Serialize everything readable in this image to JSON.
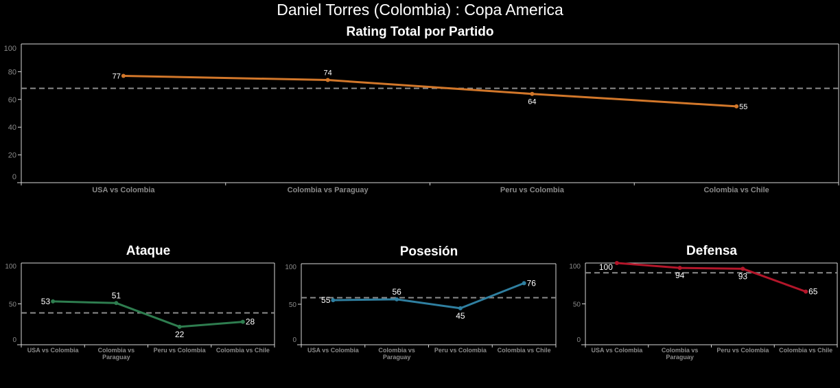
{
  "header": {
    "title": "Daniel Torres (Colombia) :  Copa  America",
    "main_chart_title": "Rating Total por Partido"
  },
  "chart_data": [
    {
      "type": "line",
      "title": "Rating Total por Partido",
      "categories": [
        "USA vs Colombia",
        "Colombia vs Paraguay",
        "Peru vs Colombia",
        "Colombia vs Chile"
      ],
      "values": [
        77,
        74,
        64,
        55
      ],
      "average_reference_line": 68,
      "yticks": [
        0,
        20,
        40,
        60,
        80,
        100
      ],
      "ylim": [
        0,
        100
      ],
      "color": "#d2772a",
      "xlabel": "",
      "ylabel": "",
      "grid": false
    },
    {
      "type": "line",
      "title": "Ataque",
      "categories": [
        "USA vs Colombia",
        "Colombia vs Paraguay",
        "Peru vs Colombia",
        "Colombia vs Chile"
      ],
      "values": [
        53,
        51,
        22,
        28
      ],
      "average_reference_line": 39,
      "yticks": [
        0,
        50,
        100
      ],
      "ylim": [
        0,
        100
      ],
      "color": "#2e7d4f",
      "grid": false
    },
    {
      "type": "line",
      "title": "Posesión",
      "categories": [
        "USA vs Colombia",
        "Colombia vs Paraguay",
        "Peru vs Colombia",
        "Colombia vs Chile"
      ],
      "values": [
        55,
        56,
        45,
        76
      ],
      "average_reference_line": 58,
      "yticks": [
        0,
        50,
        100
      ],
      "ylim": [
        0,
        100
      ],
      "color": "#2f7fa0",
      "grid": false
    },
    {
      "type": "line",
      "title": "Defensa",
      "categories": [
        "USA vs Colombia",
        "Colombia vs Paraguay",
        "Peru vs Colombia",
        "Colombia vs Chile"
      ],
      "values": [
        100,
        94,
        93,
        65
      ],
      "average_reference_line": 88,
      "yticks": [
        0,
        50,
        100
      ],
      "ylim": [
        0,
        100
      ],
      "color": "#b3162a",
      "grid": false
    }
  ],
  "small_category_labels": [
    [
      "USA vs Colombia"
    ],
    [
      "Colombia vs",
      "Paraguay"
    ],
    [
      "Peru vs Colombia"
    ],
    [
      "Colombia vs Chile"
    ]
  ]
}
